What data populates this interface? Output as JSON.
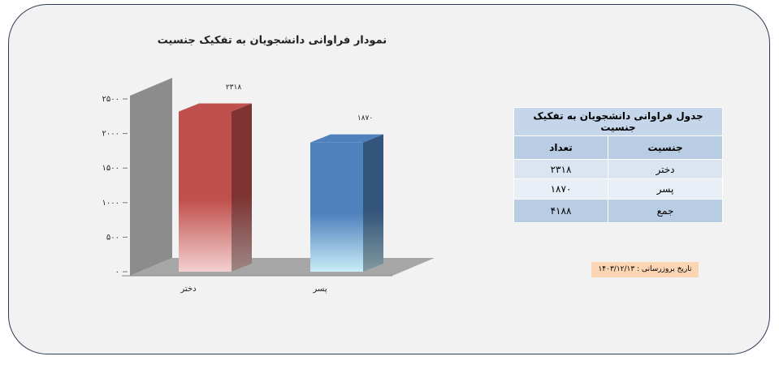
{
  "chart_data": {
    "type": "bar3d",
    "title": "نمودار فراوانی دانشجویان به تفکیک جنسیت",
    "categories": [
      "دختر",
      "پسر"
    ],
    "values": [
      2318,
      1870
    ],
    "value_labels": [
      "۲۳۱۸",
      "۱۸۷۰"
    ],
    "colors": [
      "#c0504d",
      "#4f81bd"
    ],
    "ylim": [
      0,
      2500
    ],
    "yticks": [
      {
        "value": 0,
        "label": "۰"
      },
      {
        "value": 500,
        "label": "۵۰۰"
      },
      {
        "value": 1000,
        "label": "۱۰۰۰"
      },
      {
        "value": 1500,
        "label": "۱۵۰۰"
      },
      {
        "value": 2000,
        "label": "۲۰۰۰"
      },
      {
        "value": 2500,
        "label": "۲۵۰۰"
      }
    ]
  },
  "table": {
    "title": "جدول فراوانی دانشجویان به تفکیک جنسیت",
    "headers": [
      "جنسیت",
      "تعداد"
    ],
    "rows": [
      [
        "دختر",
        "۲۳۱۸"
      ],
      [
        "پسر",
        "۱۸۷۰"
      ],
      [
        "جمع",
        "۴۱۸۸"
      ]
    ]
  },
  "update_note": "تاریخ بروزرسانی : ۱۴۰۳/۱۲/۱۳"
}
